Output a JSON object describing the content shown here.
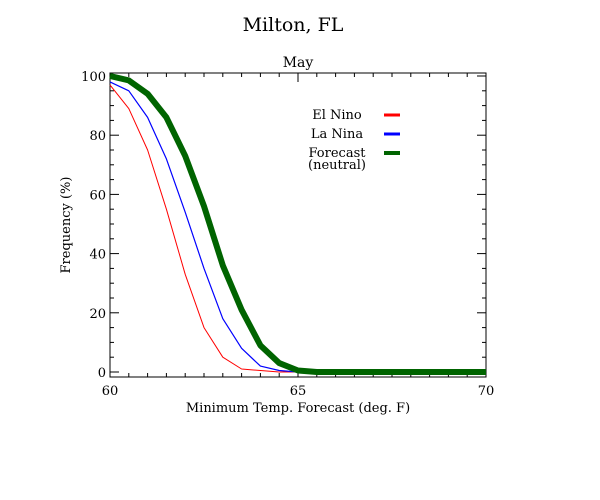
{
  "chart_data": {
    "type": "line",
    "title": "Milton, FL",
    "subtitle": "May",
    "xlabel": "Minimum Temp. Forecast (deg. F)",
    "ylabel": "Frequency (%)",
    "xlim": [
      60,
      70
    ],
    "ylim": [
      0,
      100
    ],
    "xticks": [
      60,
      65,
      70
    ],
    "yticks": [
      0,
      20,
      40,
      60,
      80,
      100
    ],
    "grid": false,
    "legend_position": "upper-center",
    "series": [
      {
        "name": "El Nino",
        "color": "#ff0000",
        "x": [
          60,
          60.5,
          61,
          61.5,
          62,
          62.5,
          63,
          63.5,
          64,
          64.5,
          65,
          70
        ],
        "y": [
          97,
          89,
          75,
          55,
          33,
          15,
          5,
          1,
          0.5,
          0,
          0,
          0
        ]
      },
      {
        "name": "La Nina",
        "color": "#0000ff",
        "x": [
          60,
          60.5,
          61,
          61.5,
          62,
          62.5,
          63,
          63.5,
          64,
          64.5,
          65,
          70
        ],
        "y": [
          98,
          95,
          86,
          72,
          54,
          35,
          18,
          8,
          2,
          0.5,
          0,
          0
        ]
      },
      {
        "name": "Forecast\n(neutral)",
        "color": "#006400",
        "x": [
          60,
          60.5,
          61,
          61.5,
          62,
          62.5,
          63,
          63.5,
          64,
          64.5,
          65,
          65.5,
          70
        ],
        "y": [
          100,
          98.5,
          94,
          86,
          73,
          56,
          36,
          21,
          9,
          3,
          0.5,
          0,
          0
        ]
      }
    ]
  }
}
